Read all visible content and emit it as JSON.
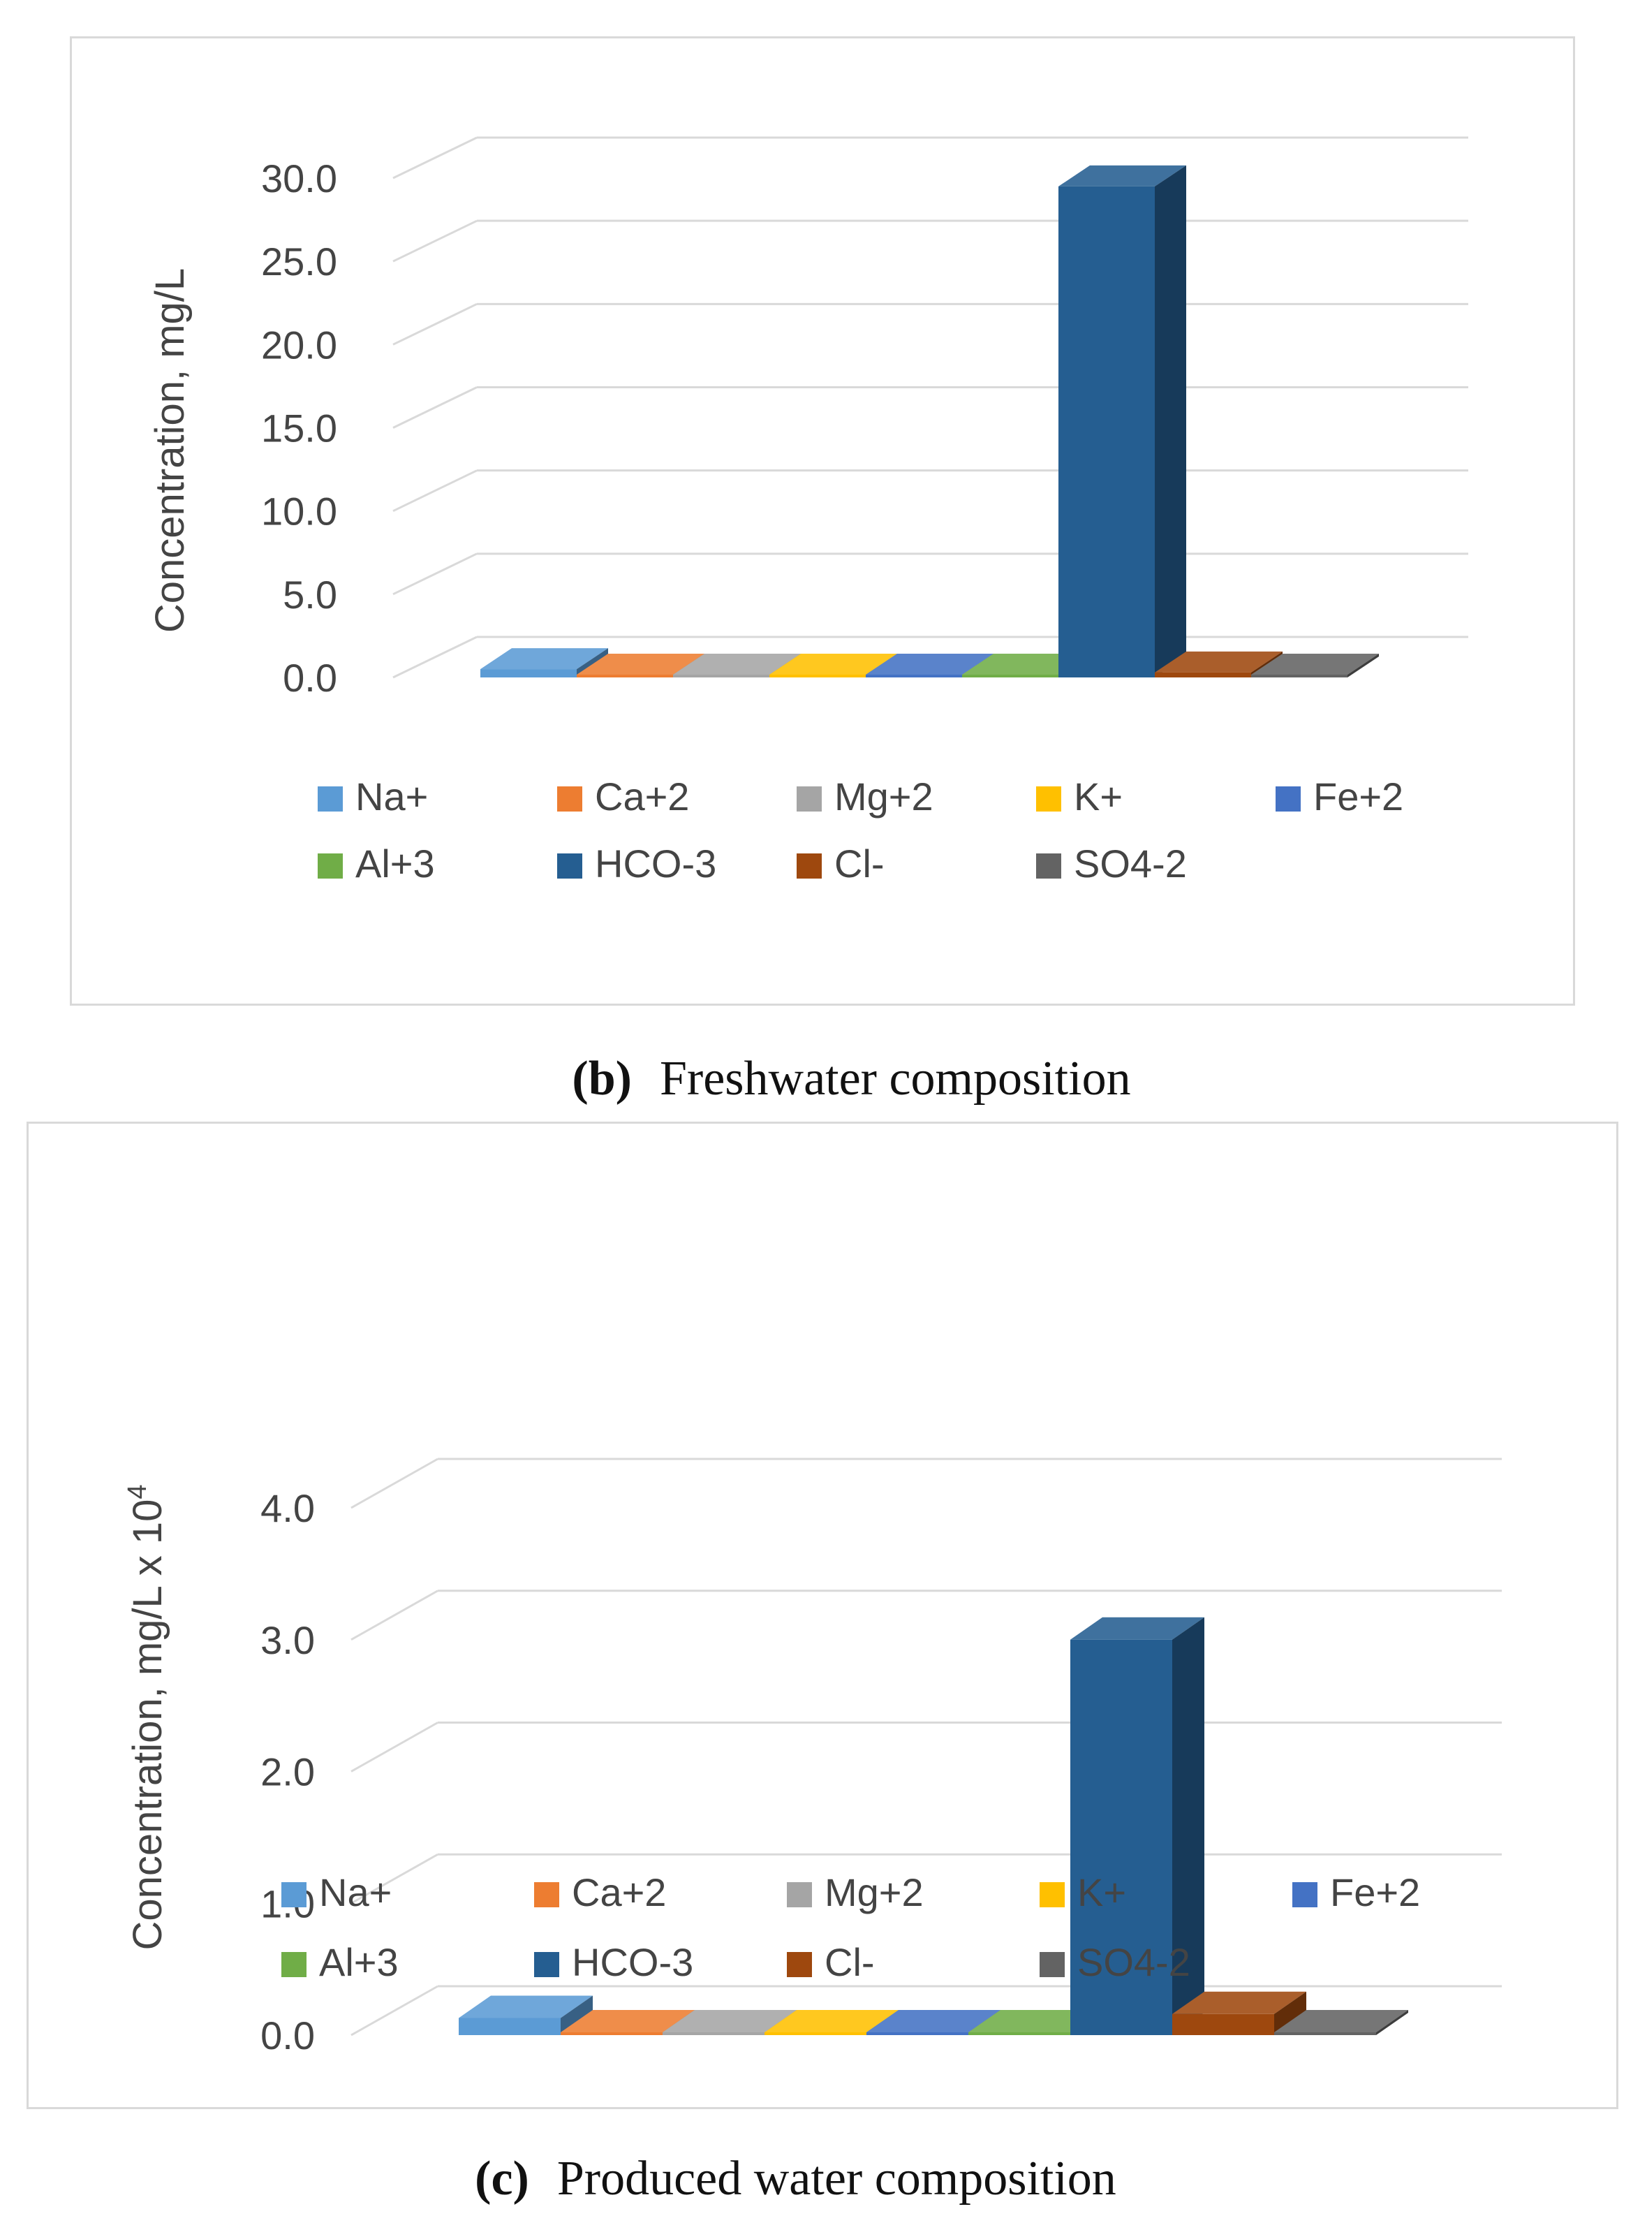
{
  "chart_data": [
    {
      "type": "bar",
      "style": "3d-column",
      "panel_label": "(b)",
      "caption": "Freshwater composition",
      "categories": [
        "Na+",
        "Ca+2",
        "Mg+2",
        "K+",
        "Fe+2",
        "Al+3",
        "HCO-3",
        "Cl-",
        "SO4-2"
      ],
      "values": [
        0.5,
        0.1,
        0.05,
        0.05,
        0.05,
        0.05,
        29.5,
        0.3,
        0.05
      ],
      "colors": [
        "#5b9bd5",
        "#ed7d31",
        "#a5a5a5",
        "#ffc000",
        "#4472c4",
        "#70ad47",
        "#255e91",
        "#9e480e",
        "#636363"
      ],
      "ylabel": "Concentration, mg/L",
      "yticks": [
        "0.0",
        "5.0",
        "10.0",
        "15.0",
        "20.0",
        "25.0",
        "30.0"
      ],
      "ylim": [
        0,
        30
      ],
      "grid": true,
      "legend": "bottom"
    },
    {
      "type": "bar",
      "style": "3d-column",
      "panel_label": "(c)",
      "caption": "Produced water composition",
      "categories": [
        "Na+",
        "Ca+2",
        "Mg+2",
        "K+",
        "Fe+2",
        "Al+3",
        "HCO-3",
        "Cl-",
        "SO4-2"
      ],
      "values": [
        0.13,
        0.02,
        0.01,
        0.01,
        0.01,
        0.01,
        3.0,
        0.16,
        0.01
      ],
      "colors": [
        "#5b9bd5",
        "#ed7d31",
        "#a5a5a5",
        "#ffc000",
        "#4472c4",
        "#70ad47",
        "#255e91",
        "#9e480e",
        "#636363"
      ],
      "ylabel": "Concentration, mg/L  x 10",
      "ylabel_superscript": "4",
      "yticks": [
        "0.0",
        "1.0",
        "2.0",
        "3.0",
        "4.0"
      ],
      "ylim": [
        0,
        4
      ],
      "grid": true,
      "legend": "bottom"
    }
  ],
  "captions": {
    "b_label": "(b)",
    "b_text": "Freshwater composition",
    "c_label": "(c)",
    "c_text": "Produced water composition"
  }
}
